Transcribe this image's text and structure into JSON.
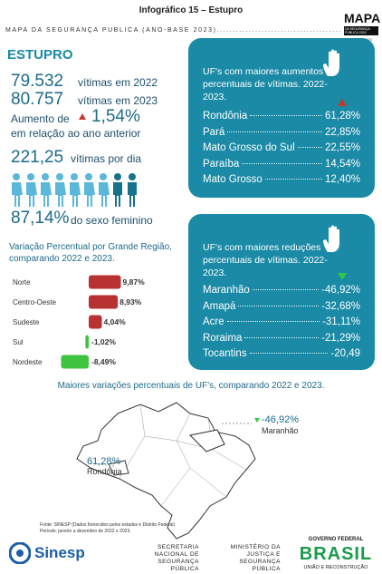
{
  "header": {
    "title": "Infográfico 15 – Estupro",
    "subtitle": "MAPA DA SEGURANÇA PÚBLICA (ANO-BASE 2023)...........................................",
    "logo_title": "MAPA",
    "logo_sub": "DA SEGURANÇA PÚBLICA 2024",
    "logo_note": "ANO-BASE 2023"
  },
  "section_title": "ESTUPRO",
  "stats": {
    "victims_2022": {
      "value": "79.532",
      "label": "vítimas em 2022"
    },
    "victims_2023": {
      "value": "80.757",
      "label": "vítimas em 2023"
    },
    "increase": {
      "label": "Aumento de",
      "value": "1,54%",
      "note": "em relação ao ano anterior"
    },
    "per_day": {
      "value": "221,25",
      "label": "vítimas por dia"
    },
    "female": {
      "value": "87,14%",
      "label": "do sexo feminino"
    }
  },
  "increases": {
    "title": "UF's com maiores aumentos percentuais de vítimas. 2022-2023.",
    "rows": [
      {
        "name": "Rondônia",
        "value": "61,28%"
      },
      {
        "name": "Pará",
        "value": "22,85%"
      },
      {
        "name": "Mato Grosso do Sul",
        "value": "22,55%"
      },
      {
        "name": "Paraíba",
        "value": "14,54%"
      },
      {
        "name": "Mato Grosso",
        "value": "12,40%"
      }
    ]
  },
  "decreases": {
    "title": "UF's com maiores reduções percentuais de vítimas. 2022- 2023.",
    "rows": [
      {
        "name": "Maranhão",
        "value": "-46,92%"
      },
      {
        "name": "Amapá",
        "value": "-32,68%"
      },
      {
        "name": "Acre",
        "value": "-31,11%"
      },
      {
        "name": "Roraima",
        "value": "-21,29%"
      },
      {
        "name": "Tocantins",
        "value": "-20,49"
      }
    ]
  },
  "region_chart": {
    "title": "Variação Percentual por Grande Região, comparando 2022 e 2023.",
    "categories": [
      "Norte",
      "Centro-Oeste",
      "Sudeste",
      "Sul",
      "Nordeste"
    ],
    "values": [
      9.87,
      8.93,
      4.04,
      -1.02,
      -8.49
    ],
    "value_labels": [
      "9,87%",
      "8,93%",
      "4,04%",
      "-1,02%",
      "-8,49%"
    ],
    "color_positive": "#b83232",
    "color_negative": "#3ec43e"
  },
  "map": {
    "title": "Maiores variações percentuais de UF's, comparando 2022 e 2023.",
    "labels": [
      {
        "value": "-46,92%",
        "name": "Maranhão"
      },
      {
        "value": "61,28%",
        "name": "Rondônia"
      }
    ]
  },
  "footer": {
    "source": "Fonte: SINESP (Dados fornecidos pelos estados e Distrito Federal)",
    "period": "Período: janeiro a dezembro de 2022 e 2023.",
    "sinesp": "Sinesp",
    "senasp": "SECRETARIA NACIONAL DE SEGURANÇA PÚBLICA",
    "ministry": "MINISTÉRIO DA JUSTIÇA E SEGURANÇA PÚBLICA",
    "gov": "GOVERNO FEDERAL",
    "brasil": "BRASIL",
    "motto": "UNIÃO E RECONSTRUÇÃO"
  }
}
